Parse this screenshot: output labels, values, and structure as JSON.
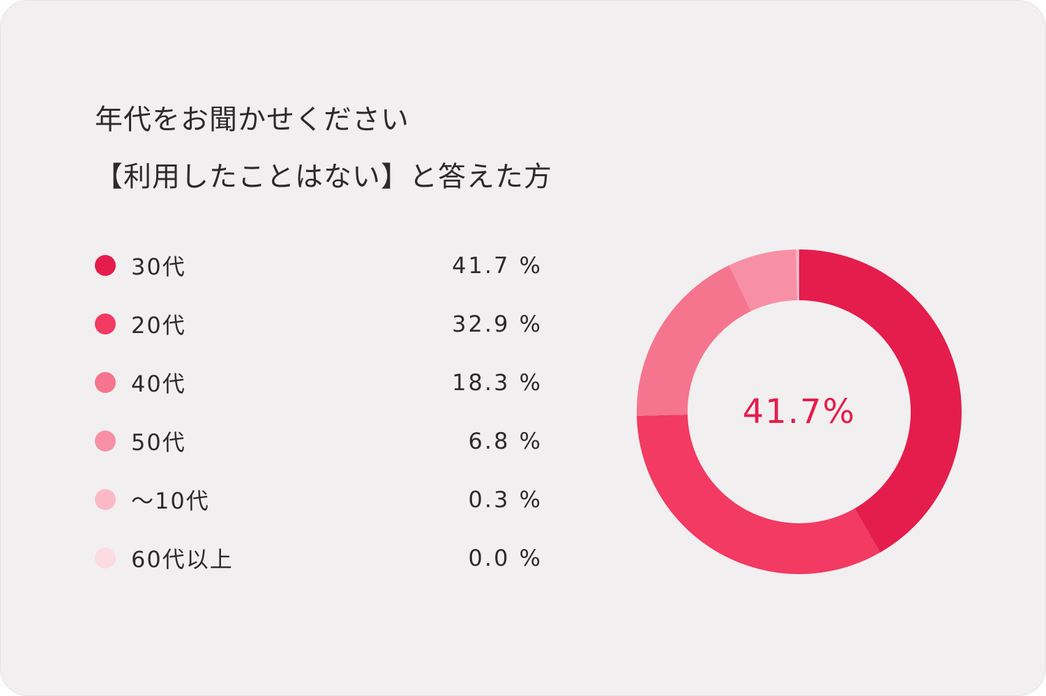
{
  "title": {
    "line1": "年代をお聞かせください",
    "line2": "【利用したことはない】と答えた方"
  },
  "center_label": "41.7%",
  "colors": {
    "card_background": "#f2eff0",
    "text": "#2b2b2b",
    "accent": "#e41d4d"
  },
  "legend": [
    {
      "label": "30代",
      "value_text": "41.7 %",
      "color": "#e41d4d"
    },
    {
      "label": "20代",
      "value_text": "32.9 %",
      "color": "#f23a62"
    },
    {
      "label": "40代",
      "value_text": "18.3 %",
      "color": "#f5758e"
    },
    {
      "label": "50代",
      "value_text": "6.8 %",
      "color": "#f890a5"
    },
    {
      "label": "～10代",
      "value_text": "0.3 %",
      "color": "#fbb9c8"
    },
    {
      "label": "60代以上",
      "value_text": "0.0 %",
      "color": "#fcdbe2"
    }
  ],
  "chart_data": {
    "type": "pie",
    "style": "donut",
    "categories": [
      "30代",
      "20代",
      "40代",
      "50代",
      "～10代",
      "60代以上"
    ],
    "values": [
      41.7,
      32.9,
      18.3,
      6.8,
      0.3,
      0.0
    ],
    "unit": "%",
    "colors": [
      "#e41d4d",
      "#f23a62",
      "#f5758e",
      "#f890a5",
      "#fbb9c8",
      "#fcdbe2"
    ],
    "title": "年代をお聞かせください 【利用したことはない】と答えた方",
    "center_text": "41.7%",
    "legend_placement": "left"
  }
}
